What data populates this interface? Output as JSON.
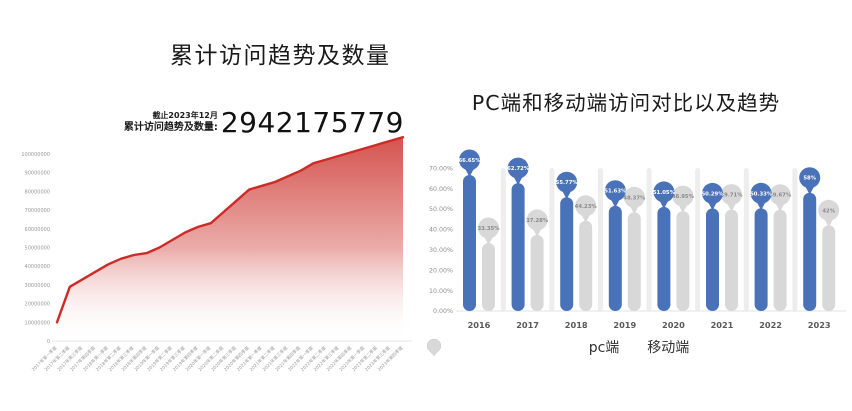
{
  "chart_data": [
    {
      "type": "area",
      "title": "累计访问趋势及数量",
      "annotation": {
        "asof": "截止2023年12月",
        "label": "累计访问趋势及数量:",
        "value": "2942175779"
      },
      "x": [
        "2017年第一季度",
        "2017年第二季度",
        "2017年第三季度",
        "2017年第四季度",
        "2018年第一季度",
        "2018年第二季度",
        "2018年第三季度",
        "2018年第四季度",
        "2019年第一季度",
        "2019年第二季度",
        "2019年第三季度",
        "2019年第四季度",
        "2020年第一季度",
        "2020年第二季度",
        "2020年第三季度",
        "2020年第四季度",
        "2021年第一季度",
        "2021年第二季度",
        "2021年第三季度",
        "2021年第四季度",
        "2022年第一季度",
        "2022年第二季度",
        "2022年第三季度",
        "2022年第四季度",
        "2023年第一季度",
        "2023年第二季度",
        "2023年第三季度",
        "2023年第四季度"
      ],
      "values": [
        10000000,
        29000000,
        33000000,
        37000000,
        41000000,
        44000000,
        46000000,
        47000000,
        50000000,
        54000000,
        58000000,
        61000000,
        63000000,
        69000000,
        75000000,
        81000000,
        83000000,
        85000000,
        88000000,
        91000000,
        95000000,
        97000000,
        99000000,
        101000000,
        103000000,
        105000000,
        107000000,
        109000000
      ],
      "yticks": [
        0,
        10000000,
        20000000,
        30000000,
        40000000,
        50000000,
        60000000,
        70000000,
        80000000,
        90000000,
        100000000
      ],
      "ylim": [
        0,
        115000000
      ],
      "grid": false,
      "line_color": "#cd2b27",
      "fill_gradient_top": "#cf3c36",
      "fill_gradient_bottom": "#ffffff",
      "axis_text_color": "#999999"
    },
    {
      "type": "bar",
      "title": "PC端和移动端访问对比以及趋势",
      "categories": [
        "2016",
        "2017",
        "2018",
        "2019",
        "2020",
        "2021",
        "2022",
        "2023"
      ],
      "series": [
        {
          "name": "pc端",
          "key": "pc",
          "color": "#4a72b8",
          "label_text_color": "#ffffff",
          "values": [
            66.65,
            62.72,
            55.77,
            51.63,
            51.05,
            50.29,
            50.33,
            58
          ],
          "labels": [
            "66.65%",
            "62.72%",
            "55.77%",
            "51.63%",
            "51.05%",
            "50.29%",
            "50.33%",
            "58%"
          ]
        },
        {
          "name": "移动端",
          "key": "mobile",
          "color": "#d8d8d8",
          "label_text_color": "#8a8a8a",
          "values": [
            33.35,
            37.28,
            44.23,
            48.37,
            48.95,
            49.71,
            49.67,
            42
          ],
          "labels": [
            "33.35%",
            "37.28%",
            "44.23%",
            "48.37%",
            "48.95%",
            "49.71%",
            "49.67%",
            "42%"
          ]
        }
      ],
      "ytick_labels": [
        "0.00%",
        "10.00%",
        "20.00%",
        "30.00%",
        "40.00%",
        "50.00%",
        "60.00%",
        "70.00%"
      ],
      "ylim": [
        0,
        70
      ],
      "legend": [
        "pc端",
        "移动端"
      ],
      "legend_position": "bottom",
      "separator_color": "#ededed",
      "axis_text_color": "#8c8c8c",
      "category_text_color": "#595959"
    }
  ]
}
